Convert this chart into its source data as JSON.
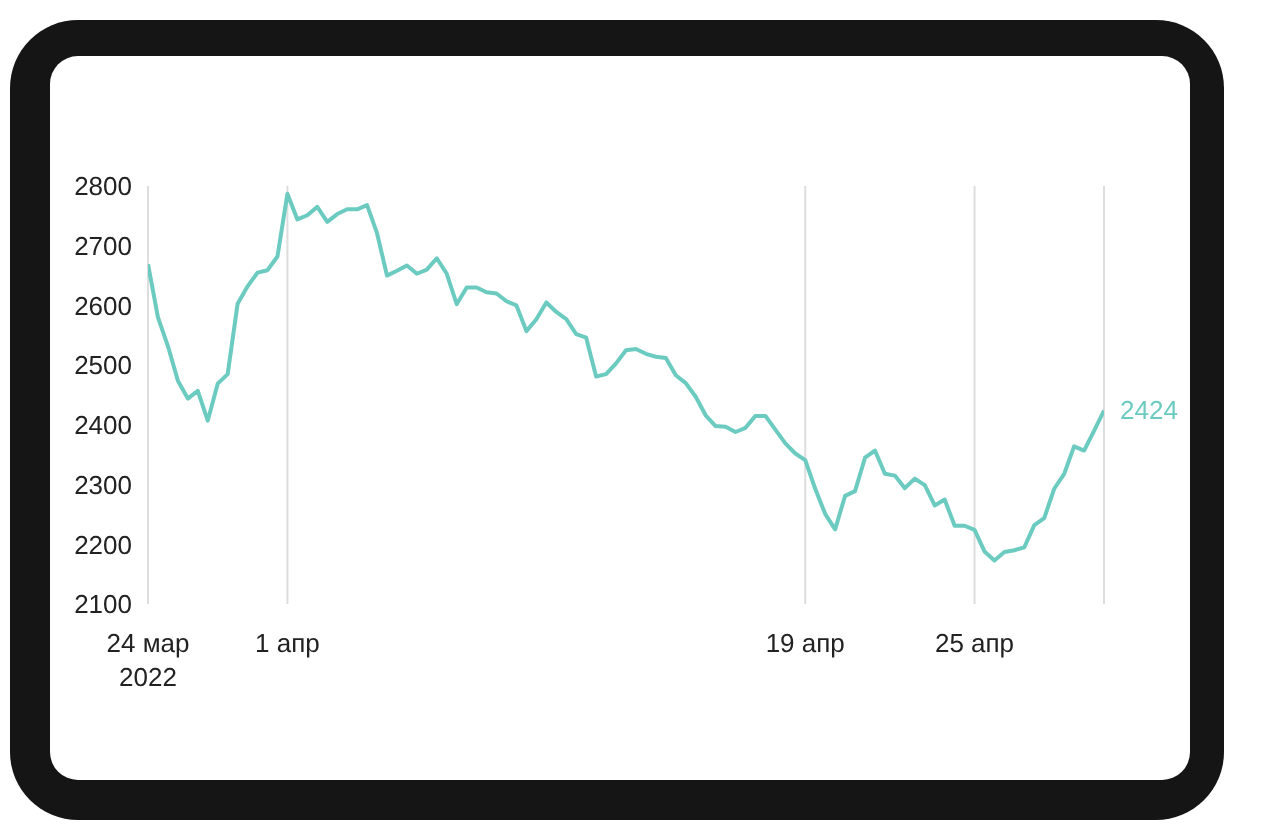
{
  "chart_data": {
    "type": "line",
    "categories": [
      "24 мар\n2022",
      null,
      null,
      null,
      null,
      null,
      null,
      null,
      null,
      null,
      null,
      null,
      null,
      null,
      "1 апр",
      null,
      null,
      null,
      null,
      null,
      null,
      null,
      null,
      null,
      null,
      null,
      null,
      null,
      null,
      null,
      null,
      null,
      null,
      null,
      null,
      null,
      null,
      null,
      null,
      null,
      null,
      null,
      null,
      null,
      null,
      null,
      null,
      null,
      null,
      null,
      null,
      null,
      null,
      null,
      null,
      null,
      null,
      null,
      null,
      null,
      null,
      null,
      null,
      null,
      null,
      null,
      "19 апр",
      null,
      null,
      null,
      null,
      null,
      null,
      null,
      null,
      null,
      null,
      null,
      null,
      null,
      null,
      null,
      null,
      "25 апр",
      null,
      null,
      null,
      null,
      null,
      null,
      null,
      null,
      null,
      null,
      null,
      null,
      null
    ],
    "series": [
      {
        "color": "#6ccbc0",
        "values": [
          2669,
          2580,
          2532,
          2474,
          2444,
          2457,
          2407,
          2469,
          2485,
          2603,
          2632,
          2655,
          2659,
          2682,
          2787,
          2744,
          2751,
          2765,
          2740,
          2753,
          2761,
          2761,
          2768,
          2721,
          2650,
          2658,
          2667,
          2653,
          2660,
          2679,
          2653,
          2602,
          2630,
          2630,
          2622,
          2620,
          2607,
          2600,
          2557,
          2577,
          2605,
          2589,
          2577,
          2552,
          2546,
          2481,
          2485,
          2503,
          2525,
          2527,
          2519,
          2514,
          2512,
          2483,
          2470,
          2447,
          2416,
          2398,
          2397,
          2388,
          2395,
          2415,
          2415,
          2392,
          2369,
          2352,
          2341,
          2293,
          2251,
          2225,
          2281,
          2289,
          2345,
          2357,
          2318,
          2315,
          2294,
          2310,
          2299,
          2265,
          2275,
          2231,
          2231,
          2224,
          2188,
          2173,
          2187,
          2190,
          2195,
          2232,
          2244,
          2293,
          2318,
          2364,
          2357,
          2390,
          2424
        ]
      }
    ],
    "ylim": [
      2100,
      2800
    ],
    "yticks": [
      2100,
      2200,
      2300,
      2400,
      2500,
      2600,
      2700,
      2800
    ],
    "annotations": [
      "2424"
    ],
    "grid": "x",
    "marker": "none",
    "line_style": "solid"
  }
}
